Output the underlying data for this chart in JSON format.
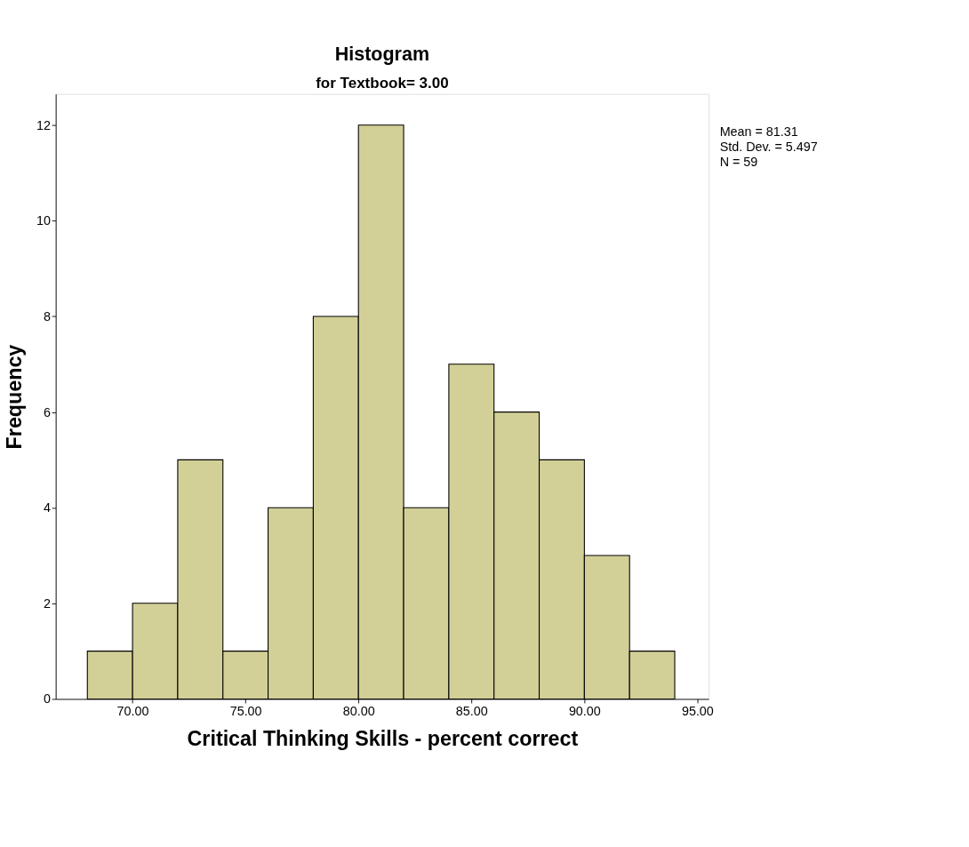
{
  "chart_data": {
    "type": "histogram",
    "title": "Histogram",
    "subtitle": "for Textbook= 3.00",
    "xlabel": "Critical Thinking Skills - percent correct",
    "ylabel": "Frequency",
    "bins": [
      68,
      70,
      72,
      74,
      76,
      78,
      80,
      82,
      84,
      86,
      88,
      90,
      92,
      94
    ],
    "values": [
      1,
      2,
      5,
      1,
      4,
      8,
      12,
      4,
      7,
      6,
      5,
      3,
      1
    ],
    "color": "#d3d097",
    "xlim": [
      66.6,
      95.5
    ],
    "ylim": [
      0,
      12.65
    ],
    "xticks": [
      {
        "value": 70,
        "label": "70.00"
      },
      {
        "value": 75,
        "label": "75.00"
      },
      {
        "value": 80,
        "label": "80.00"
      },
      {
        "value": 85,
        "label": "85.00"
      },
      {
        "value": 90,
        "label": "90.00"
      },
      {
        "value": 95,
        "label": "95.00"
      }
    ],
    "yticks": [
      0,
      2,
      4,
      6,
      8,
      10,
      12
    ],
    "annotations": [
      "Mean = 81.31",
      "Std. Dev. = 5.497",
      "N = 59"
    ],
    "grid": false
  }
}
